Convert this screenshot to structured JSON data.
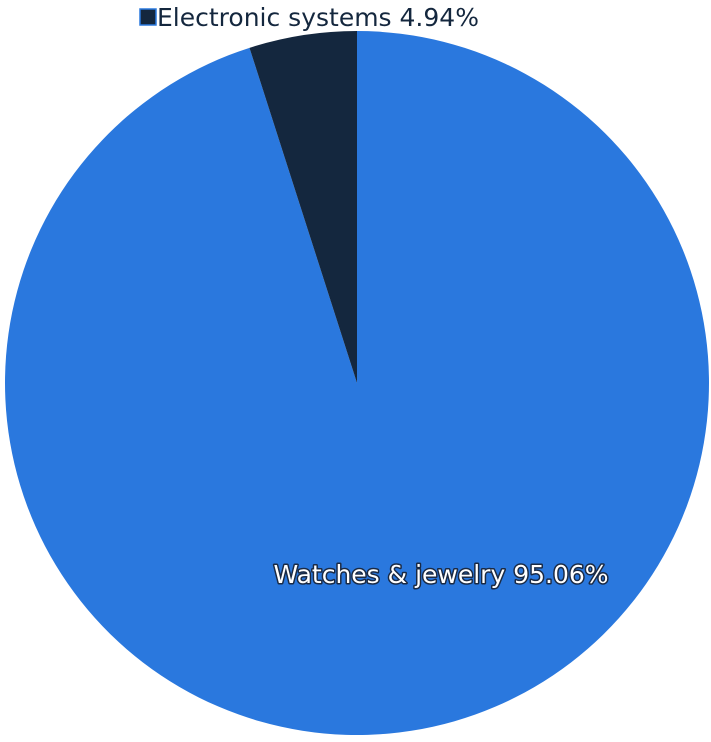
{
  "chart_data": {
    "type": "pie",
    "title": "",
    "slices": [
      {
        "label": "Watches & jewelry",
        "value": 95.06,
        "value_label": "95.06%",
        "color": "#2a78de"
      },
      {
        "label": "Electronic systems",
        "value": 4.94,
        "value_label": "4.94%",
        "color": "#14273e"
      }
    ],
    "start_angle_deg": 0,
    "direction": "clockwise",
    "legend": "none"
  }
}
